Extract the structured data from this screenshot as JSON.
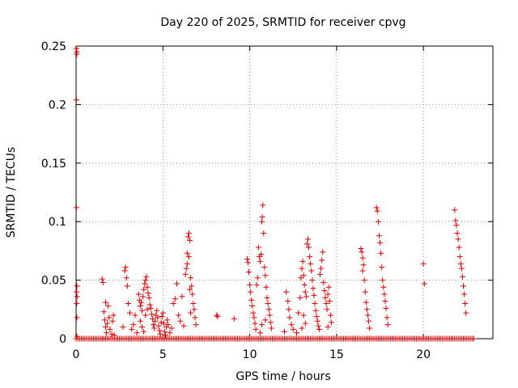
{
  "chart_data": {
    "type": "scatter",
    "title": "Day 220 of 2025, SRMTID for receiver cpvg",
    "xlabel": "GPS time / hours",
    "ylabel": "SRMTID / TECUs",
    "xlim": [
      0,
      24
    ],
    "ylim": [
      0,
      0.25
    ],
    "xticks": [
      0,
      5,
      10,
      15,
      20
    ],
    "xtick_labels": [
      "0",
      "5",
      "10",
      "15",
      "20"
    ],
    "yticks": [
      0,
      0.05,
      0.1,
      0.15,
      0.2,
      0.25
    ],
    "ytick_labels": [
      "0",
      "0.05",
      "0.1",
      "0.15",
      "0.2",
      "0.25"
    ],
    "grid": true,
    "marker": "+",
    "color": "#e00000",
    "series": [
      {
        "name": "SRMTID",
        "points": [
          [
            0.02,
            0.248
          ],
          [
            0.04,
            0.243
          ],
          [
            0.05,
            0.245
          ],
          [
            0.02,
            0.204
          ],
          [
            0.02,
            0.112
          ],
          [
            0.05,
            0.045
          ],
          [
            0.03,
            0.04
          ],
          [
            0.06,
            0.036
          ],
          [
            0.04,
            0.03
          ],
          [
            0.05,
            0.018
          ],
          [
            0.05,
            0.002
          ],
          [
            1.5,
            0.051
          ],
          [
            1.55,
            0.048
          ],
          [
            1.6,
            0.023
          ],
          [
            1.65,
            0.016
          ],
          [
            1.7,
            0.01
          ],
          [
            1.75,
            0.005
          ],
          [
            1.8,
            0.013
          ],
          [
            1.9,
            0.018
          ],
          [
            1.95,
            0.008
          ],
          [
            2.05,
            0.004
          ],
          [
            2.1,
            0.015
          ],
          [
            2.15,
            0.02
          ],
          [
            2.2,
            0.003
          ],
          [
            1.85,
            0.028
          ],
          [
            1.7,
            0.031
          ],
          [
            2.8,
            0.058
          ],
          [
            2.85,
            0.061
          ],
          [
            2.9,
            0.052
          ],
          [
            2.95,
            0.045
          ],
          [
            3.0,
            0.03
          ],
          [
            3.1,
            0.022
          ],
          [
            2.7,
            0.01
          ],
          [
            3.2,
            0.008
          ],
          [
            3.3,
            0.012
          ],
          [
            3.4,
            0.02
          ],
          [
            3.6,
            0.038
          ],
          [
            3.65,
            0.033
          ],
          [
            3.7,
            0.028
          ],
          [
            3.75,
            0.031
          ],
          [
            3.8,
            0.024
          ],
          [
            3.85,
            0.036
          ],
          [
            3.9,
            0.042
          ],
          [
            3.95,
            0.047
          ],
          [
            4.0,
            0.05
          ],
          [
            4.05,
            0.053
          ],
          [
            4.1,
            0.044
          ],
          [
            4.15,
            0.039
          ],
          [
            4.2,
            0.035
          ],
          [
            4.25,
            0.029
          ],
          [
            4.3,
            0.026
          ],
          [
            4.35,
            0.021
          ],
          [
            4.4,
            0.017
          ],
          [
            4.45,
            0.012
          ],
          [
            4.5,
            0.009
          ],
          [
            4.55,
            0.015
          ],
          [
            4.6,
            0.02
          ],
          [
            4.65,
            0.024
          ],
          [
            4.7,
            0.018
          ],
          [
            4.75,
            0.011
          ],
          [
            4.8,
            0.007
          ],
          [
            4.85,
            0.004
          ],
          [
            4.9,
            0.014
          ],
          [
            4.95,
            0.019
          ],
          [
            5.0,
            0.022
          ],
          [
            5.05,
            0.013
          ],
          [
            5.1,
            0.006
          ],
          [
            5.15,
            0.003
          ],
          [
            5.2,
            0.01
          ],
          [
            5.25,
            0.016
          ],
          [
            5.3,
            0.012
          ],
          [
            5.4,
            0.005
          ],
          [
            3.7,
            0.015
          ],
          [
            3.8,
            0.01
          ],
          [
            3.9,
            0.006
          ],
          [
            4.0,
            0.02
          ],
          [
            4.1,
            0.025
          ],
          [
            3.5,
            0.005
          ],
          [
            5.5,
            0.009
          ],
          [
            5.6,
            0.03
          ],
          [
            5.7,
            0.034
          ],
          [
            5.8,
            0.047
          ],
          [
            5.9,
            0.02
          ],
          [
            6.0,
            0.015
          ],
          [
            6.1,
            0.036
          ],
          [
            6.2,
            0.011
          ],
          [
            6.3,
            0.055
          ],
          [
            6.35,
            0.06
          ],
          [
            6.4,
            0.064
          ],
          [
            6.45,
            0.087
          ],
          [
            6.5,
            0.09
          ],
          [
            6.55,
            0.084
          ],
          [
            6.6,
            0.052
          ],
          [
            6.65,
            0.045
          ],
          [
            6.7,
            0.038
          ],
          [
            6.75,
            0.03
          ],
          [
            6.8,
            0.025
          ],
          [
            6.85,
            0.018
          ],
          [
            6.9,
            0.012
          ],
          [
            6.5,
            0.07
          ],
          [
            6.4,
            0.073
          ],
          [
            6.55,
            0.042
          ],
          [
            6.6,
            0.022
          ],
          [
            8.1,
            0.02
          ],
          [
            8.15,
            0.019
          ],
          [
            9.1,
            0.017
          ],
          [
            9.85,
            0.068
          ],
          [
            9.9,
            0.065
          ],
          [
            9.95,
            0.057
          ],
          [
            10.0,
            0.046
          ],
          [
            10.05,
            0.04
          ],
          [
            10.1,
            0.033
          ],
          [
            10.15,
            0.028
          ],
          [
            10.2,
            0.022
          ],
          [
            10.25,
            0.018
          ],
          [
            10.3,
            0.013
          ],
          [
            10.35,
            0.008
          ],
          [
            10.4,
            0.046
          ],
          [
            10.45,
            0.052
          ],
          [
            10.5,
            0.078
          ],
          [
            10.55,
            0.07
          ],
          [
            10.6,
            0.066
          ],
          [
            10.65,
            0.072
          ],
          [
            10.7,
            0.1
          ],
          [
            10.72,
            0.104
          ],
          [
            10.75,
            0.114
          ],
          [
            10.8,
            0.09
          ],
          [
            10.85,
            0.061
          ],
          [
            10.9,
            0.054
          ],
          [
            10.95,
            0.044
          ],
          [
            11.0,
            0.035
          ],
          [
            11.05,
            0.03
          ],
          [
            11.1,
            0.025
          ],
          [
            11.15,
            0.02
          ],
          [
            11.2,
            0.014
          ],
          [
            11.25,
            0.009
          ],
          [
            10.6,
            0.005
          ],
          [
            10.7,
            0.012
          ],
          [
            10.9,
            0.016
          ],
          [
            12.0,
            0.006
          ],
          [
            12.1,
            0.04
          ],
          [
            12.2,
            0.032
          ],
          [
            12.25,
            0.025
          ],
          [
            12.3,
            0.018
          ],
          [
            12.4,
            0.012
          ],
          [
            12.5,
            0.008
          ],
          [
            12.7,
            0.005
          ],
          [
            12.8,
            0.022
          ],
          [
            12.9,
            0.035
          ],
          [
            12.95,
            0.052
          ],
          [
            13.0,
            0.06
          ],
          [
            13.05,
            0.066
          ],
          [
            13.1,
            0.054
          ],
          [
            13.15,
            0.046
          ],
          [
            13.2,
            0.04
          ],
          [
            13.25,
            0.036
          ],
          [
            13.3,
            0.081
          ],
          [
            13.35,
            0.085
          ],
          [
            13.4,
            0.078
          ],
          [
            13.45,
            0.07
          ],
          [
            13.5,
            0.064
          ],
          [
            13.55,
            0.058
          ],
          [
            13.6,
            0.05
          ],
          [
            13.65,
            0.043
          ],
          [
            13.7,
            0.037
          ],
          [
            13.75,
            0.03
          ],
          [
            13.8,
            0.024
          ],
          [
            13.85,
            0.019
          ],
          [
            13.9,
            0.015
          ],
          [
            13.95,
            0.011
          ],
          [
            14.0,
            0.008
          ],
          [
            13.1,
            0.02
          ],
          [
            13.2,
            0.013
          ],
          [
            13.0,
            0.009
          ],
          [
            14.05,
            0.055
          ],
          [
            14.1,
            0.06
          ],
          [
            14.15,
            0.067
          ],
          [
            14.2,
            0.074
          ],
          [
            14.25,
            0.048
          ],
          [
            14.3,
            0.041
          ],
          [
            14.35,
            0.035
          ],
          [
            14.4,
            0.03
          ],
          [
            14.45,
            0.025
          ],
          [
            14.5,
            0.038
          ],
          [
            14.55,
            0.044
          ],
          [
            14.6,
            0.032
          ],
          [
            14.65,
            0.02
          ],
          [
            14.7,
            0.014
          ],
          [
            14.5,
            0.01
          ],
          [
            16.4,
            0.077
          ],
          [
            16.45,
            0.074
          ],
          [
            16.5,
            0.069
          ],
          [
            16.55,
            0.063
          ],
          [
            16.6,
            0.05
          ],
          [
            16.65,
            0.04
          ],
          [
            16.7,
            0.031
          ],
          [
            16.75,
            0.025
          ],
          [
            16.8,
            0.02
          ],
          [
            16.85,
            0.015
          ],
          [
            16.9,
            0.009
          ],
          [
            16.5,
            0.058
          ],
          [
            17.3,
            0.112
          ],
          [
            17.35,
            0.109
          ],
          [
            17.4,
            0.1
          ],
          [
            17.45,
            0.088
          ],
          [
            17.5,
            0.082
          ],
          [
            17.55,
            0.073
          ],
          [
            17.6,
            0.061
          ],
          [
            17.65,
            0.05
          ],
          [
            17.7,
            0.044
          ],
          [
            17.75,
            0.038
          ],
          [
            17.8,
            0.032
          ],
          [
            17.85,
            0.026
          ],
          [
            17.9,
            0.018
          ],
          [
            17.95,
            0.012
          ],
          [
            20.0,
            0.064
          ],
          [
            20.05,
            0.047
          ],
          [
            21.8,
            0.11
          ],
          [
            21.85,
            0.101
          ],
          [
            21.9,
            0.097
          ],
          [
            21.95,
            0.09
          ],
          [
            22.0,
            0.085
          ],
          [
            22.05,
            0.078
          ],
          [
            22.1,
            0.07
          ],
          [
            22.15,
            0.064
          ],
          [
            22.2,
            0.06
          ],
          [
            22.25,
            0.053
          ],
          [
            22.3,
            0.045
          ],
          [
            22.35,
            0.038
          ],
          [
            22.4,
            0.03
          ],
          [
            22.45,
            0.022
          ]
        ],
        "baseline": {
          "y": 0,
          "ranges": [
            [
              0.0,
              1.5
            ],
            [
              1.5,
              9.9
            ],
            [
              9.9,
              16.0
            ],
            [
              16.0,
              22.9
            ]
          ],
          "step": 0.1
        }
      }
    ]
  }
}
